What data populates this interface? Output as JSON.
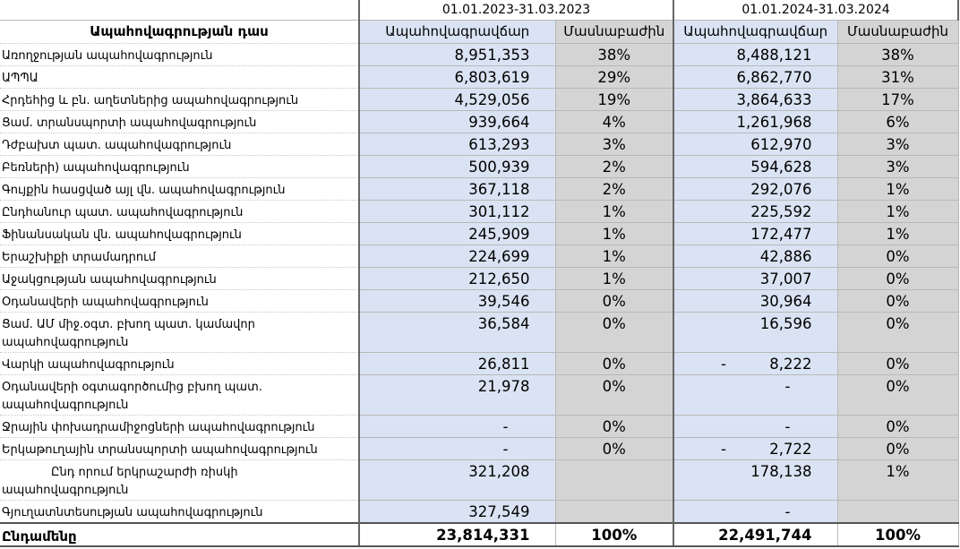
{
  "table": {
    "header": {
      "periods": [
        "01.01.2023-31.03.2023",
        "01.01.2024-31.03.2024"
      ],
      "class_label": "Ապահովագրության դաս",
      "columns": [
        "Ապահովագրավճար",
        "Մասնաբաժին",
        "Ապահովագրավճար",
        "Մասնաբաժին"
      ]
    },
    "rows": [
      [
        "Առողջության ապահովագրություն",
        "8,951,353",
        "38%",
        "8,488,121",
        "38%"
      ],
      [
        "ԱՊՊԱ",
        "6,803,619",
        "29%",
        "6,862,770",
        "31%"
      ],
      [
        "Հրդեհից և բն. աղետներից ապահովագրություն",
        "4,529,056",
        "19%",
        "3,864,633",
        "17%"
      ],
      [
        "Ցամ. տրանսպորտի ապահովագրություն",
        "939,664",
        "4%",
        "1,261,968",
        "6%"
      ],
      [
        "Դժբախտ պատ. ապահովագրություն",
        "613,293",
        "3%",
        "612,970",
        "3%"
      ],
      [
        "Բեռների) ապահովագրություն",
        "500,939",
        "2%",
        "594,628",
        "3%"
      ],
      [
        "Գույքին հասցված այլ վն. ապահովագրություն",
        "367,118",
        "2%",
        "292,076",
        "1%"
      ],
      [
        "Ընդհանուր պատ. ապահովագրություն",
        "301,112",
        "1%",
        "225,592",
        "1%"
      ],
      [
        "Ֆինանսական վն. ապահովագրություն",
        "245,909",
        "1%",
        "172,477",
        "1%"
      ],
      [
        "Երաշխիքի տրամադրում",
        "224,699",
        "1%",
        "42,886",
        "0%"
      ],
      [
        "Աջակցության ապահովագրություն",
        "212,650",
        "1%",
        "37,007",
        "0%"
      ],
      [
        "Օդանավերի ապահովագրություն",
        "39,546",
        "0%",
        "30,964",
        "0%"
      ],
      [
        [
          "Ցամ. ԱՄ միջ.օգտ. բխող պատ. կամավոր",
          "ապահովագրություն"
        ],
        "36,584",
        "0%",
        "16,596",
        "0%"
      ],
      [
        "Վարկի ապահովագրություն",
        "26,811",
        "0%",
        [
          "-",
          "8,222"
        ],
        "0%"
      ],
      [
        [
          "Օդանավերի օգտագործումից բխող պատ.",
          "ապահովագրություն"
        ],
        "21,978",
        "0%",
        "-",
        "0%"
      ],
      [
        "Ջրային փոխադրամիջոցների ապահովագրություն",
        "-",
        "0%",
        "-",
        "0%"
      ],
      [
        "Երկաթուղային տրանսպորտի ապահովագրություն",
        "-",
        "0%",
        [
          "-",
          "2,722"
        ],
        "0%"
      ],
      [
        [
          "Ընդ որում  երկրաշարժի ռիսկի",
          "ապահովագրություն"
        ],
        "321,208",
        null,
        "178,138",
        "1%"
      ],
      [
        "Գյուղատնտեսության ապահովագրություն",
        "327,549",
        null,
        "-",
        null
      ]
    ],
    "total": [
      "Ընդամենը",
      "23,814,331",
      "100%",
      "22,491,744",
      "100%"
    ]
  }
}
